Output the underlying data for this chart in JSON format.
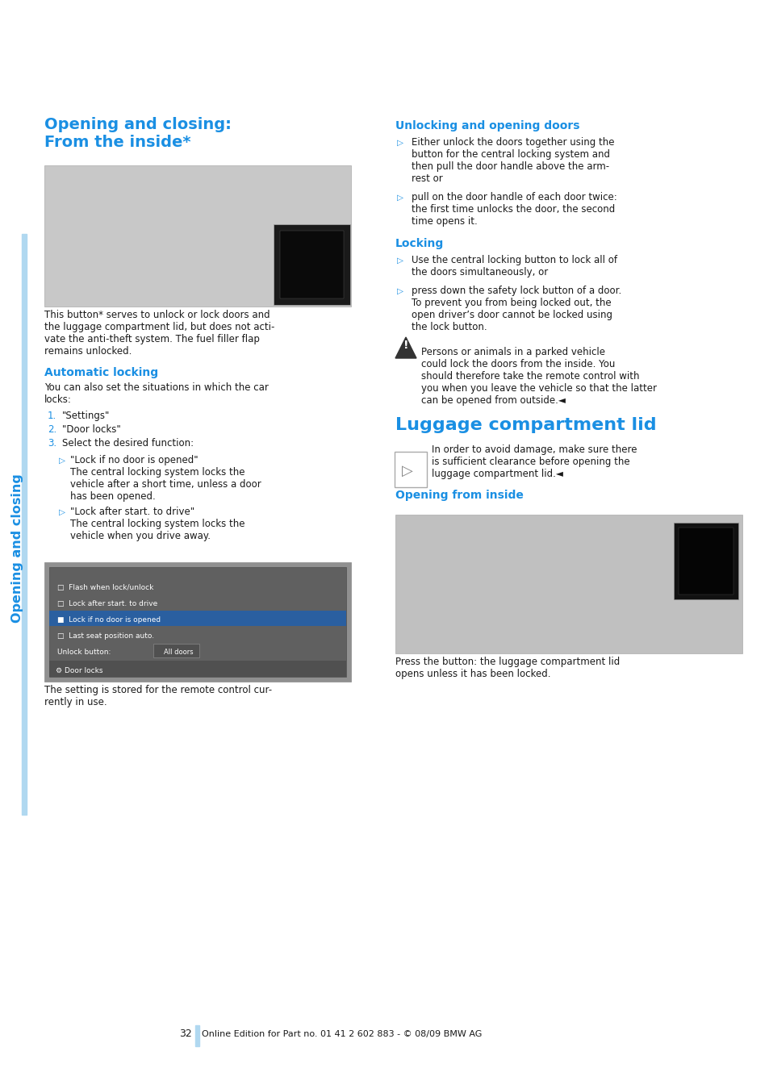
{
  "page_bg": "#ffffff",
  "sidebar_color": "#b0d8f0",
  "blue": "#1a8fe3",
  "black": "#1a1a1a",
  "gray_img": "#c0c0c0",
  "gray_img2": "#b0b0b0",
  "page_number": "32",
  "footer_text": "Online Edition for Part no. 01 41 2 602 883 - © 08/09 BMW AG",
  "sidebar_label": "Opening and closing",
  "s1_title1": "Opening and closing:",
  "s1_title2": "From the inside*",
  "body1_lines": [
    "This button* serves to unlock or lock doors and",
    "the luggage compartment lid, but does not acti-",
    "vate the anti-theft system. The fuel filler flap",
    "remains unlocked."
  ],
  "auto_lock_title": "Automatic locking",
  "auto_lock_lines": [
    "You can also set the situations in which the car",
    "locks:"
  ],
  "numbered": [
    "\"Settings\"",
    "\"Door locks\"",
    "Select the desired function:"
  ],
  "sub_items": [
    {
      "header": "\"Lock if no door is opened\"",
      "desc": [
        "The central locking system locks the",
        "vehicle after a short time, unless a door",
        "has been opened."
      ]
    },
    {
      "header": "\"Lock after start. to drive\"",
      "desc": [
        "The central locking system locks the",
        "vehicle when you drive away."
      ]
    }
  ],
  "screen_items": [
    {
      "text": "Unlock button:",
      "val": "All doors",
      "highlighted": false
    },
    {
      "text": "□  Last seat position auto.",
      "val": "",
      "highlighted": false
    },
    {
      "text": "■  Lock if no door is opened",
      "val": "",
      "highlighted": true
    },
    {
      "text": "□  Lock after start. to drive",
      "val": "",
      "highlighted": false
    },
    {
      "text": "□  Flash when lock/unlock",
      "val": "",
      "highlighted": false
    }
  ],
  "stored_lines": [
    "The setting is stored for the remote control cur-",
    "rently in use."
  ],
  "unlock_title": "Unlocking and opening doors",
  "unlock_bullets": [
    [
      "Either unlock the doors together using the",
      "button for the central locking system and",
      "then pull the door handle above the arm-",
      "rest or"
    ],
    [
      "pull on the door handle of each door twice:",
      "the first time unlocks the door, the second",
      "time opens it."
    ]
  ],
  "lock_title": "Locking",
  "lock_bullets": [
    [
      "Use the central locking button to lock all of",
      "the doors simultaneously, or"
    ],
    [
      "press down the safety lock button of a door.",
      "To prevent you from being locked out, the",
      "open driver’s door cannot be locked using",
      "the lock button."
    ]
  ],
  "warning_lines": [
    "Persons or animals in a parked vehicle",
    "could lock the doors from the inside. You",
    "should therefore take the remote control with",
    "you when you leave the vehicle so that the latter",
    "can be opened from outside.◄"
  ],
  "luggage_title": "Luggage compartment lid",
  "luggage_note_lines": [
    "In order to avoid damage, make sure there",
    "is sufficient clearance before opening the",
    "luggage compartment lid.◄"
  ],
  "open_inside_title": "Opening from inside",
  "press_lines": [
    "Press the button: the luggage compartment lid",
    "opens unless it has been locked."
  ]
}
